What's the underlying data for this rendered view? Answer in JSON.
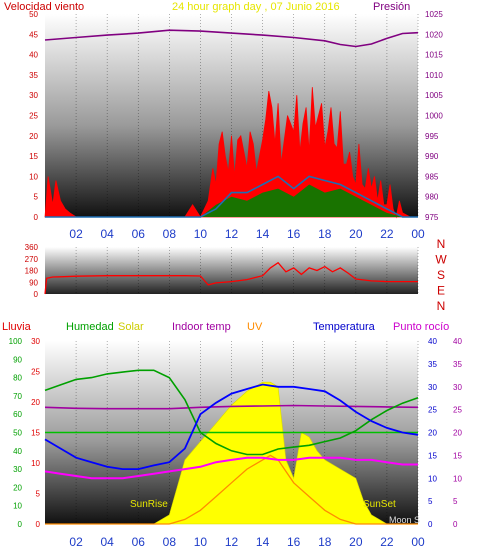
{
  "chart_data": [
    {
      "type": "line",
      "title": "24 hour graph day , 07 Junio 2016",
      "left_label": "Velocidad viento",
      "right_label": "Presión",
      "x_ticks": [
        "02",
        "04",
        "06",
        "08",
        "10",
        "12",
        "14",
        "16",
        "18",
        "20",
        "22",
        "00"
      ],
      "y_left": {
        "range": [
          0,
          50
        ],
        "ticks": [
          0,
          5,
          10,
          15,
          20,
          25,
          30,
          35,
          40,
          45,
          50
        ]
      },
      "y_right": {
        "range": [
          975,
          1025
        ],
        "ticks": [
          975,
          980,
          985,
          990,
          995,
          1000,
          1005,
          1010,
          1015,
          1020,
          1025
        ]
      },
      "colors": {
        "wind_gust": "#ff0000",
        "wind_avg": "#008000",
        "wind_dir": "#1e6eb4",
        "pressure": "#800080"
      },
      "series": [
        {
          "key": "pressure",
          "x": [
            0,
            2,
            4,
            6,
            8,
            10,
            12,
            14,
            16,
            18,
            19,
            20,
            21,
            22,
            23,
            24
          ],
          "values": [
            1018.6,
            1019.2,
            1019.8,
            1020.3,
            1021.0,
            1020.8,
            1020.3,
            1019.8,
            1019.2,
            1018.4,
            1017.5,
            1017.0,
            1017.6,
            1019.0,
            1020.2,
            1020.4
          ]
        },
        {
          "key": "wind_gust",
          "x": [
            0,
            0.2,
            0.5,
            0.7,
            1.0,
            1.3,
            1.6,
            2.0,
            3.0,
            4.0,
            5.0,
            6.0,
            7.0,
            8.0,
            9.0,
            9.5,
            10.0,
            10.5,
            10.8,
            11.0,
            11.2,
            11.4,
            11.6,
            11.8,
            12.0,
            12.2,
            12.4,
            12.6,
            12.8,
            13.0,
            13.2,
            13.4,
            13.6,
            13.8,
            14.0,
            14.2,
            14.4,
            14.6,
            14.8,
            15.0,
            15.2,
            15.4,
            15.6,
            15.8,
            16.0,
            16.2,
            16.4,
            16.6,
            16.8,
            17.0,
            17.2,
            17.4,
            17.6,
            17.8,
            18.0,
            18.2,
            18.4,
            18.6,
            18.8,
            19.0,
            19.2,
            19.4,
            19.6,
            19.8,
            20.0,
            20.2,
            20.4,
            20.6,
            20.8,
            21.0,
            21.2,
            21.4,
            21.6,
            21.8,
            22.0,
            22.2,
            22.4,
            22.6,
            22.8,
            23.0,
            23.5,
            24.0
          ],
          "values": [
            0,
            10,
            3,
            9,
            4,
            2,
            1,
            0,
            0,
            0,
            0,
            0,
            0,
            0,
            0,
            3,
            0,
            4,
            12,
            8,
            18,
            21,
            15,
            11,
            20,
            10,
            19,
            20,
            16,
            12,
            21,
            18,
            11,
            15,
            19,
            24,
            31,
            27,
            18,
            28,
            13,
            19,
            25,
            23,
            21,
            30,
            16,
            23,
            27,
            16,
            32,
            22,
            25,
            28,
            17,
            21,
            27,
            18,
            17,
            26,
            13,
            13,
            16,
            10,
            8,
            18,
            8,
            7,
            12,
            7,
            10,
            4,
            9,
            3,
            3,
            8,
            2,
            0,
            4,
            1,
            0,
            0
          ]
        },
        {
          "key": "wind_avg",
          "x": [
            0,
            2,
            4,
            6,
            8,
            10,
            11,
            12,
            13,
            14,
            15,
            16,
            17,
            18,
            19,
            20,
            21,
            22,
            23,
            24
          ],
          "values": [
            0,
            0,
            0,
            0,
            0,
            0,
            3,
            5,
            4,
            6,
            7,
            5,
            8,
            6,
            7,
            5,
            3,
            1,
            0,
            0
          ]
        },
        {
          "key": "wind_dir",
          "x": [
            0,
            2,
            4,
            6,
            8,
            10,
            11,
            12,
            13,
            14,
            15,
            16,
            17,
            18,
            19,
            20,
            21,
            22,
            23,
            24
          ],
          "values": [
            0,
            0,
            0,
            0,
            0,
            0,
            2,
            6,
            6,
            8,
            10,
            7,
            10,
            9,
            8,
            6,
            4,
            2,
            0,
            0
          ]
        }
      ]
    },
    {
      "type": "line",
      "x_ticks": [
        "02",
        "04",
        "06",
        "08",
        "10",
        "12",
        "14",
        "16",
        "18",
        "20",
        "22",
        "00"
      ],
      "y_left": {
        "range": [
          0,
          360
        ],
        "ticks": [
          0,
          90,
          180,
          270,
          360
        ]
      },
      "compass": [
        "N",
        "W",
        "S",
        "E",
        "N"
      ],
      "colors": {
        "direction": "#ff0000"
      },
      "series": [
        {
          "key": "direction",
          "x": [
            0,
            0.1,
            0.5,
            1,
            2,
            4,
            6,
            8,
            9,
            10,
            10.5,
            11,
            12,
            13,
            14,
            14.5,
            15,
            15.5,
            16,
            16.5,
            17,
            17.5,
            18,
            18.5,
            19,
            19.5,
            20,
            21,
            22,
            23,
            24
          ],
          "values": [
            0,
            120,
            130,
            132,
            136,
            140,
            140,
            140,
            140,
            138,
            70,
            85,
            95,
            110,
            140,
            200,
            240,
            170,
            200,
            150,
            200,
            180,
            210,
            170,
            200,
            160,
            115,
            100,
            95,
            95,
            95
          ]
        }
      ]
    },
    {
      "type": "line",
      "legend": {
        "rain": "Lluvia",
        "humidity": "Humedad",
        "solar": "Solar",
        "indoor": "Indoor temp",
        "uv": "UV",
        "temp": "Temperatura",
        "dew": "Punto rocío"
      },
      "annotations": {
        "sunrise": "SunRise",
        "sunset": "SunSet",
        "moon": "Moon S"
      },
      "x_ticks": [
        "02",
        "04",
        "06",
        "08",
        "10",
        "12",
        "14",
        "16",
        "18",
        "20",
        "22",
        "00"
      ],
      "y_humidity": {
        "range": [
          0,
          100
        ],
        "ticks": [
          0,
          10,
          20,
          30,
          40,
          50,
          60,
          70,
          80,
          90,
          100
        ]
      },
      "y_rain": {
        "range": [
          0,
          30
        ],
        "ticks": [
          0,
          5,
          10,
          15,
          20,
          25,
          30
        ]
      },
      "y_temp": {
        "range": [
          0,
          40
        ],
        "ticks": [
          0,
          5,
          10,
          15,
          20,
          25,
          30,
          35,
          40
        ]
      },
      "y_uv": {
        "range": [
          0,
          40
        ],
        "ticks": [
          0,
          5,
          10,
          15,
          20,
          25,
          30,
          35,
          40
        ]
      },
      "colors": {
        "humidity": "#00a000",
        "solar": "#ffff00",
        "indoor": "#a000a0",
        "uv": "#ff8c00",
        "temp": "#0000ff",
        "dew": "#ff00ff",
        "rain_line": "#00c000"
      },
      "series": [
        {
          "key": "humidity",
          "x": [
            0,
            1,
            2,
            3,
            4,
            5,
            6,
            7,
            8,
            9,
            10,
            11,
            12,
            13,
            14,
            15,
            16,
            17,
            18,
            19,
            20,
            21,
            22,
            23,
            24
          ],
          "values": [
            73,
            76,
            79,
            80,
            82,
            83,
            84,
            84,
            80,
            68,
            50,
            44,
            40,
            38,
            38,
            41,
            42,
            43,
            45,
            47,
            51,
            57,
            62,
            66,
            69
          ]
        },
        {
          "key": "temp",
          "x": [
            0,
            1,
            2,
            3,
            4,
            5,
            6,
            7,
            8,
            9,
            10,
            11,
            12,
            13,
            14,
            15,
            16,
            17,
            18,
            19,
            20,
            21,
            22,
            23,
            24
          ],
          "values": [
            18.5,
            16.5,
            14.5,
            13.5,
            12.5,
            12.0,
            12.0,
            12.8,
            13.5,
            16.5,
            24.0,
            26.5,
            28.5,
            29.5,
            30.5,
            30.0,
            30.0,
            29.5,
            29.0,
            27.0,
            24.5,
            22.5,
            21.0,
            20.0,
            19.5
          ]
        },
        {
          "key": "indoor",
          "x": [
            0,
            2,
            4,
            6,
            8,
            10,
            12,
            14,
            16,
            18,
            20,
            22,
            24
          ],
          "values": [
            25.5,
            25.3,
            25.2,
            25.2,
            25.2,
            25.5,
            25.7,
            25.8,
            25.9,
            25.8,
            25.7,
            25.6,
            25.5
          ]
        },
        {
          "key": "dew",
          "x": [
            0,
            1,
            2,
            3,
            4,
            5,
            6,
            7,
            8,
            9,
            10,
            11,
            12,
            13,
            14,
            15,
            16,
            17,
            18,
            19,
            20,
            21,
            22,
            23,
            24
          ],
          "values": [
            11.5,
            11.0,
            10.5,
            10.0,
            10.0,
            10.0,
            10.5,
            11.0,
            11.5,
            12.0,
            12.5,
            13.5,
            14.0,
            14.5,
            14.5,
            14.0,
            14.0,
            14.5,
            14.5,
            14.5,
            14.0,
            14.0,
            13.5,
            13.0,
            13.0
          ]
        },
        {
          "key": "solar",
          "x": [
            0,
            6.5,
            7,
            8,
            8.5,
            9,
            10,
            11,
            12,
            13,
            13.5,
            14,
            14.5,
            15,
            15.5,
            16,
            16.5,
            17,
            17.5,
            18,
            19,
            20,
            20.5,
            21,
            21.5,
            22,
            24
          ],
          "values": [
            0,
            0,
            0,
            2,
            8,
            14,
            18,
            22,
            26,
            29,
            30,
            31,
            31,
            30,
            14,
            10,
            20,
            19,
            16,
            14,
            12,
            10,
            5,
            2,
            1,
            0,
            0
          ]
        },
        {
          "key": "uv",
          "x": [
            0,
            8,
            9,
            10,
            11,
            12,
            13,
            14,
            14.5,
            15,
            16,
            17,
            18,
            19,
            20,
            24
          ],
          "values": [
            0,
            0,
            1,
            3,
            6,
            9,
            12,
            14,
            15,
            14,
            9,
            6,
            3,
            1,
            0,
            0
          ]
        }
      ],
      "rain_level": 15
    }
  ]
}
